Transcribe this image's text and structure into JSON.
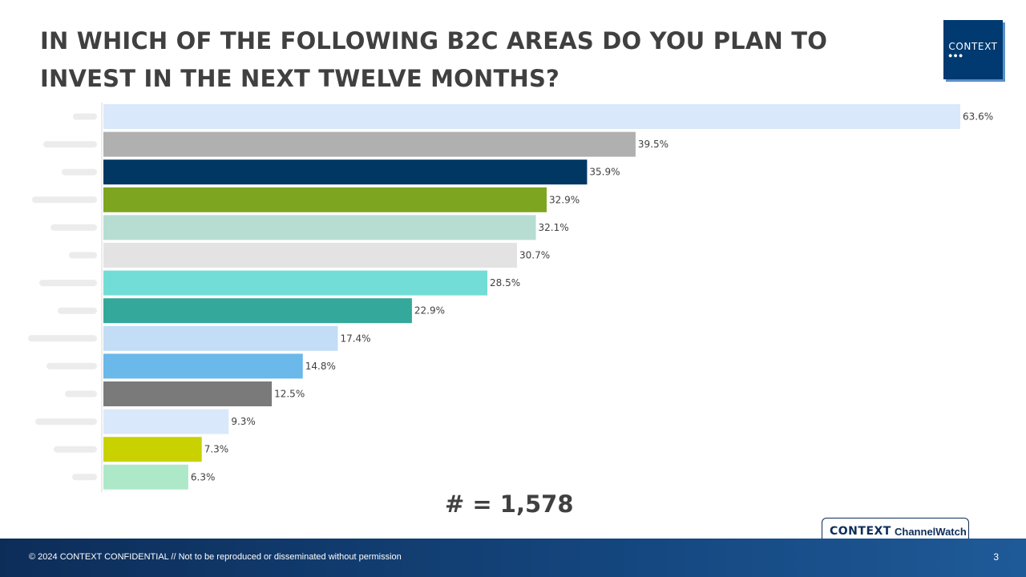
{
  "title": "IN WHICH OF THE FOLLOWING B2C AREAS DO YOU PLAN TO INVEST IN THE NEXT TWELVE MONTHS?",
  "logo": {
    "text": "CONTEXT"
  },
  "sample_size": "# = 1,578",
  "footer": {
    "copyright": "© 2024 CONTEXT CONFIDENTIAL // Not to be reproduced or disseminated without permission",
    "page_number": "3"
  },
  "badge": {
    "brand": "CONTEXT",
    "product": "ChannelWatch"
  },
  "chart_data": {
    "type": "bar",
    "orientation": "horizontal",
    "categories_note": "category labels are blurred/illegible",
    "values": [
      63.6,
      39.5,
      35.9,
      32.9,
      32.1,
      30.7,
      28.5,
      22.9,
      17.4,
      14.8,
      12.5,
      9.3,
      7.3,
      6.3
    ],
    "value_labels": [
      "63.6%",
      "39.5%",
      "35.9%",
      "32.9%",
      "32.1%",
      "30.7%",
      "28.5%",
      "22.9%",
      "17.4%",
      "14.8%",
      "12.5%",
      "9.3%",
      "7.3%",
      "6.3%"
    ],
    "colors": [
      "#dae8fb",
      "#b0b0b0",
      "#003763",
      "#7da51f",
      "#b7ddd2",
      "#e3e3e3",
      "#72ddd6",
      "#33a89b",
      "#c2ddf5",
      "#6bb8ea",
      "#7a7a7a",
      "#dae8fb",
      "#c9d200",
      "#ade9c8"
    ],
    "xlim": [
      0,
      63.6
    ],
    "unit": "%",
    "grid": false,
    "legend": "none"
  }
}
